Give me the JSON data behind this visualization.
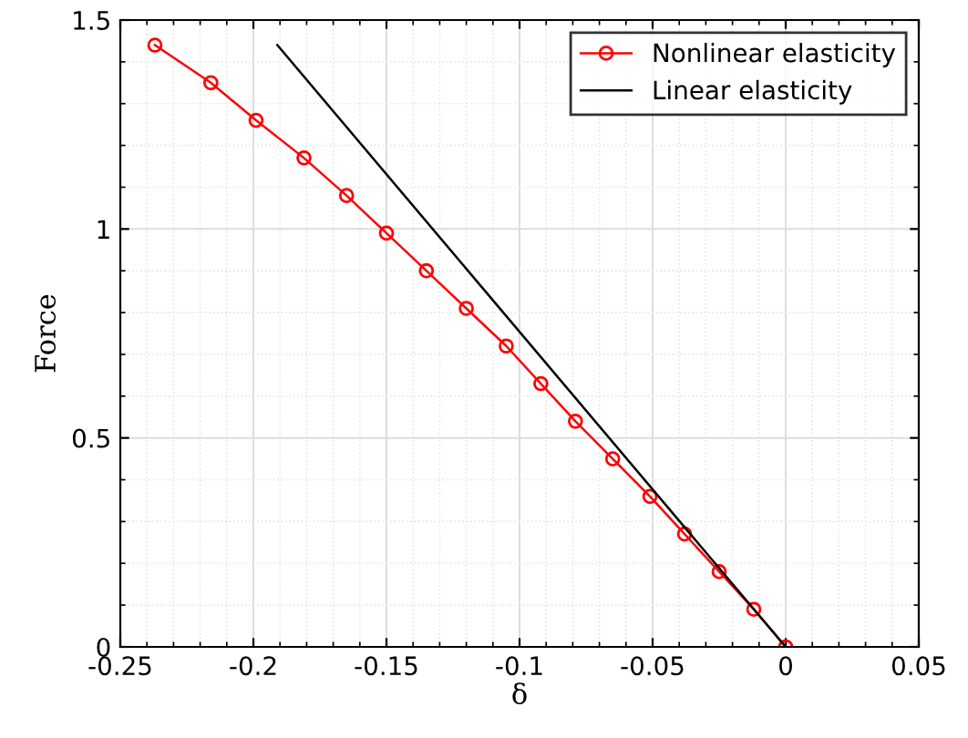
{
  "chart_data": {
    "type": "line",
    "xlabel": "δ",
    "ylabel": "Force",
    "xlim": [
      -0.25,
      0.05
    ],
    "ylim": [
      0,
      1.5
    ],
    "xticks": [
      -0.25,
      -0.2,
      -0.15,
      -0.1,
      -0.05,
      0,
      0.05
    ],
    "yticks": [
      0,
      0.5,
      1,
      1.5
    ],
    "grid": true,
    "legend": "top right",
    "series": [
      {
        "name": "Nonlinear elasticity",
        "color": "#ff0000",
        "marker": "circle",
        "x": [
          0,
          -0.012,
          -0.025,
          -0.038,
          -0.051,
          -0.065,
          -0.079,
          -0.092,
          -0.105,
          -0.12,
          -0.135,
          -0.15,
          -0.165,
          -0.181,
          -0.199,
          -0.216,
          -0.237
        ],
        "values": [
          0,
          0.09,
          0.18,
          0.27,
          0.36,
          0.45,
          0.54,
          0.63,
          0.72,
          0.81,
          0.9,
          0.99,
          1.08,
          1.17,
          1.26,
          1.35,
          1.44
        ]
      },
      {
        "name": "Linear elasticity",
        "color": "#000000",
        "marker": "none",
        "x": [
          0,
          -0.191
        ],
        "values": [
          0,
          1.44
        ]
      }
    ]
  }
}
